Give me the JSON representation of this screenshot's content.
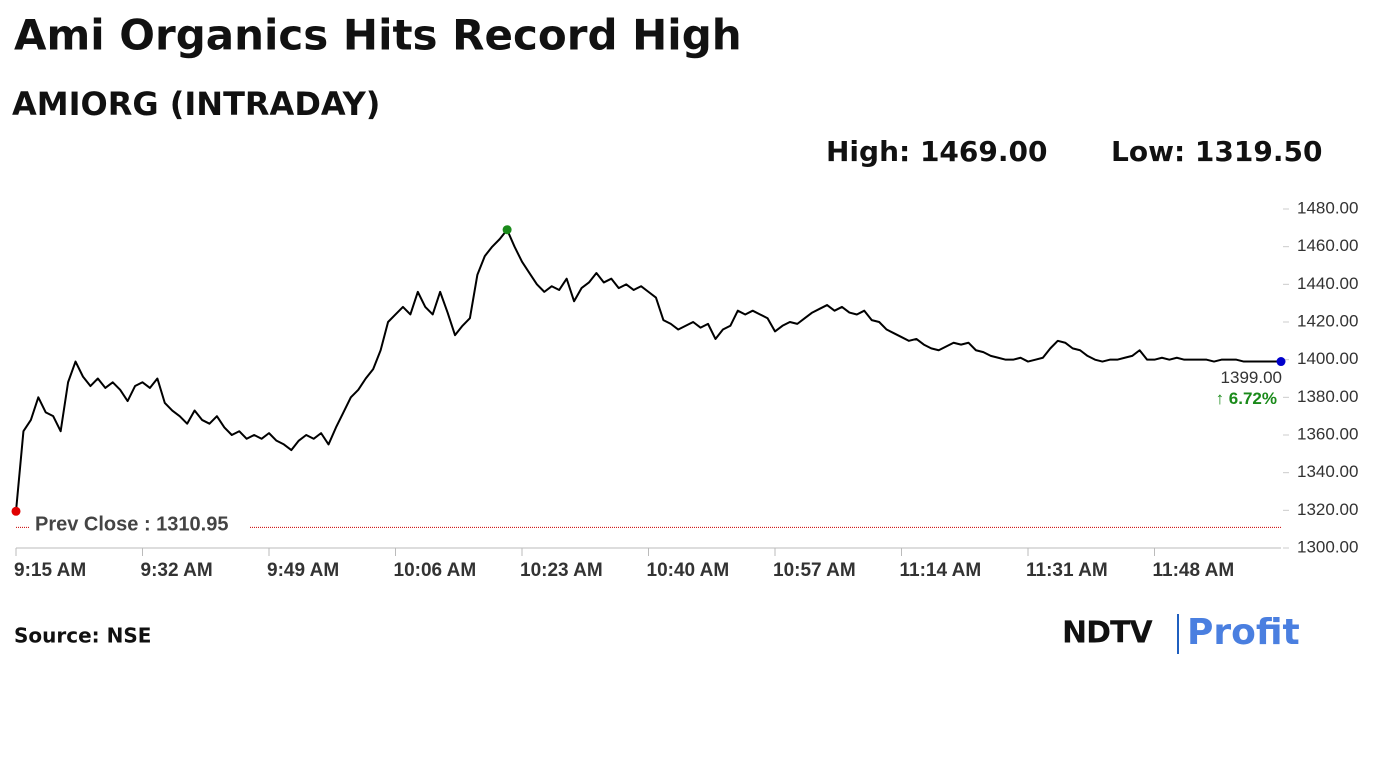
{
  "chart_data": {
    "type": "line",
    "title": "Ami Organics Hits Record High",
    "subtitle": "AMIORG (INTRADAY)",
    "stats": [
      "High: 1469.00",
      "Low: 1319.50"
    ],
    "prev_close": {
      "value": 1310.95,
      "label": "Prev Close : 1310.95"
    },
    "last_label": "1399.00",
    "change_label": "↑ 6.72%",
    "source": "Source: NSE",
    "brand": [
      "NDTV",
      "Profit"
    ],
    "color": "#000000",
    "start_color": "#e00000",
    "high_color": "#1a8a1a",
    "end_color": "#0000cc",
    "change_color": "#1a8a1a",
    "prev_color": "#cc0000",
    "ylim": [
      1300,
      1480
    ],
    "yticks": [
      {
        "value": 1300,
        "label": "1300.00"
      },
      {
        "value": 1320,
        "label": "1320.00"
      },
      {
        "value": 1340,
        "label": "1340.00"
      },
      {
        "value": 1360,
        "label": "1360.00"
      },
      {
        "value": 1380,
        "label": "1380.00"
      },
      {
        "value": 1400,
        "label": "1400.00"
      },
      {
        "value": 1420,
        "label": "1420.00"
      },
      {
        "value": 1440,
        "label": "1440.00"
      },
      {
        "value": 1460,
        "label": "1460.00"
      },
      {
        "value": 1480,
        "label": "1480.00"
      }
    ],
    "categories": [
      "9:15 AM",
      "9:16 AM",
      "9:17 AM",
      "9:18 AM",
      "9:19 AM",
      "9:20 AM",
      "9:21 AM",
      "9:22 AM",
      "9:23 AM",
      "9:24 AM",
      "9:25 AM",
      "9:26 AM",
      "9:27 AM",
      "9:28 AM",
      "9:29 AM",
      "9:30 AM",
      "9:31 AM",
      "9:32 AM",
      "9:33 AM",
      "9:34 AM",
      "9:35 AM",
      "9:36 AM",
      "9:37 AM",
      "9:38 AM",
      "9:39 AM",
      "9:40 AM",
      "9:41 AM",
      "9:42 AM",
      "9:43 AM",
      "9:44 AM",
      "9:45 AM",
      "9:46 AM",
      "9:47 AM",
      "9:48 AM",
      "9:49 AM",
      "9:50 AM",
      "9:51 AM",
      "9:52 AM",
      "9:53 AM",
      "9:54 AM",
      "9:55 AM",
      "9:56 AM",
      "9:57 AM",
      "9:58 AM",
      "9:59 AM",
      "10:00 AM",
      "10:01 AM",
      "10:02 AM",
      "10:03 AM",
      "10:04 AM",
      "10:05 AM",
      "10:06 AM",
      "10:07 AM",
      "10:08 AM",
      "10:09 AM",
      "10:10 AM",
      "10:11 AM",
      "10:12 AM",
      "10:13 AM",
      "10:14 AM",
      "10:15 AM",
      "10:16 AM",
      "10:17 AM",
      "10:18 AM",
      "10:19 AM",
      "10:20 AM",
      "10:21 AM",
      "10:22 AM",
      "10:23 AM",
      "10:24 AM",
      "10:25 AM",
      "10:26 AM",
      "10:27 AM",
      "10:28 AM",
      "10:29 AM",
      "10:30 AM",
      "10:31 AM",
      "10:32 AM",
      "10:33 AM",
      "10:34 AM",
      "10:35 AM",
      "10:36 AM",
      "10:37 AM",
      "10:38 AM",
      "10:39 AM",
      "10:40 AM",
      "10:41 AM",
      "10:42 AM",
      "10:43 AM",
      "10:44 AM",
      "10:45 AM",
      "10:46 AM",
      "10:47 AM",
      "10:48 AM",
      "10:49 AM",
      "10:50 AM",
      "10:51 AM",
      "10:52 AM",
      "10:53 AM",
      "10:54 AM",
      "10:55 AM",
      "10:56 AM",
      "10:57 AM",
      "10:58 AM",
      "10:59 AM",
      "11:00 AM",
      "11:01 AM",
      "11:02 AM",
      "11:03 AM",
      "11:04 AM",
      "11:05 AM",
      "11:06 AM",
      "11:07 AM",
      "11:08 AM",
      "11:09 AM",
      "11:10 AM",
      "11:11 AM",
      "11:12 AM",
      "11:13 AM",
      "11:14 AM",
      "11:15 AM",
      "11:16 AM",
      "11:17 AM",
      "11:18 AM",
      "11:19 AM",
      "11:20 AM",
      "11:21 AM",
      "11:22 AM",
      "11:23 AM",
      "11:24 AM",
      "11:25 AM",
      "11:26 AM",
      "11:27 AM",
      "11:28 AM",
      "11:29 AM",
      "11:30 AM",
      "11:31 AM",
      "11:32 AM",
      "11:33 AM",
      "11:34 AM",
      "11:35 AM",
      "11:36 AM",
      "11:37 AM",
      "11:38 AM",
      "11:39 AM",
      "11:40 AM",
      "11:41 AM",
      "11:42 AM",
      "11:43 AM",
      "11:44 AM",
      "11:45 AM",
      "11:46 AM",
      "11:47 AM",
      "11:48 AM",
      "11:49 AM",
      "11:50 AM",
      "11:51 AM",
      "11:52 AM",
      "11:53 AM",
      "11:54 AM",
      "11:55 AM",
      "11:56 AM",
      "11:57 AM",
      "11:58 AM",
      "11:59 AM",
      "12:00 PM",
      "12:01 PM",
      "12:02 PM",
      "12:03 PM",
      "12:04 PM",
      "12:05 PM"
    ],
    "values": [
      1319.5,
      1362,
      1368,
      1380,
      1372,
      1370,
      1362,
      1388,
      1399,
      1391,
      1386,
      1390,
      1385,
      1388,
      1384,
      1378,
      1386,
      1388,
      1385,
      1390,
      1377,
      1373,
      1370,
      1366,
      1373,
      1368,
      1366,
      1370,
      1364,
      1360,
      1362,
      1358,
      1360,
      1358,
      1361,
      1357,
      1355,
      1352,
      1357,
      1360,
      1358,
      1361,
      1355,
      1364,
      1372,
      1380,
      1384,
      1390,
      1395,
      1405,
      1420,
      1424,
      1428,
      1424,
      1436,
      1428,
      1424,
      1436,
      1425,
      1413,
      1418,
      1422,
      1445,
      1455,
      1460,
      1464,
      1469,
      1460,
      1452,
      1446,
      1440,
      1436,
      1439,
      1437,
      1443,
      1431,
      1438,
      1441,
      1446,
      1441,
      1443,
      1438,
      1440,
      1437,
      1439,
      1436,
      1433,
      1421,
      1419,
      1416,
      1418,
      1420,
      1417,
      1419,
      1411,
      1416,
      1418,
      1426,
      1424,
      1426,
      1424,
      1422,
      1415,
      1418,
      1420,
      1419,
      1422,
      1425,
      1427,
      1429,
      1426,
      1428,
      1425,
      1424,
      1426,
      1421,
      1420,
      1416,
      1414,
      1412,
      1410,
      1411,
      1408,
      1406,
      1405,
      1407,
      1409,
      1408,
      1409,
      1405,
      1404,
      1402,
      1401,
      1400,
      1400,
      1401,
      1399,
      1400,
      1401,
      1406,
      1410,
      1409,
      1406,
      1405,
      1402,
      1400,
      1399,
      1400,
      1400,
      1401,
      1402,
      1405,
      1400,
      1400,
      1401,
      1400,
      1401,
      1400,
      1400,
      1400,
      1400,
      1399,
      1400,
      1400,
      1400,
      1399,
      1399,
      1399,
      1399,
      1399,
      1399
    ]
  }
}
